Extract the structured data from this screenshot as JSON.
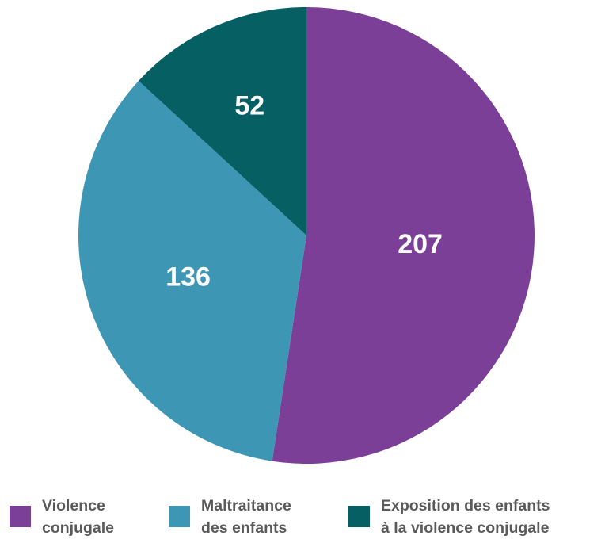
{
  "chart_data": {
    "type": "pie",
    "categories": [
      "Violence conjugale",
      "Maltraitance des enfants",
      "Exposition des enfants à la violence conjugale"
    ],
    "values": [
      207,
      136,
      52
    ],
    "colors": [
      "#7b3f98",
      "#3d96b4",
      "#065f63"
    ],
    "legend_position": "bottom",
    "legend": [
      {
        "line1": "Violence",
        "line2": "conjugale",
        "color": "#7b3f98"
      },
      {
        "line1": "Maltraitance",
        "line2": "des enfants",
        "color": "#3d96b4"
      },
      {
        "line1": "Exposition des enfants",
        "line2": "à la violence conjugale",
        "color": "#065f63"
      }
    ]
  }
}
